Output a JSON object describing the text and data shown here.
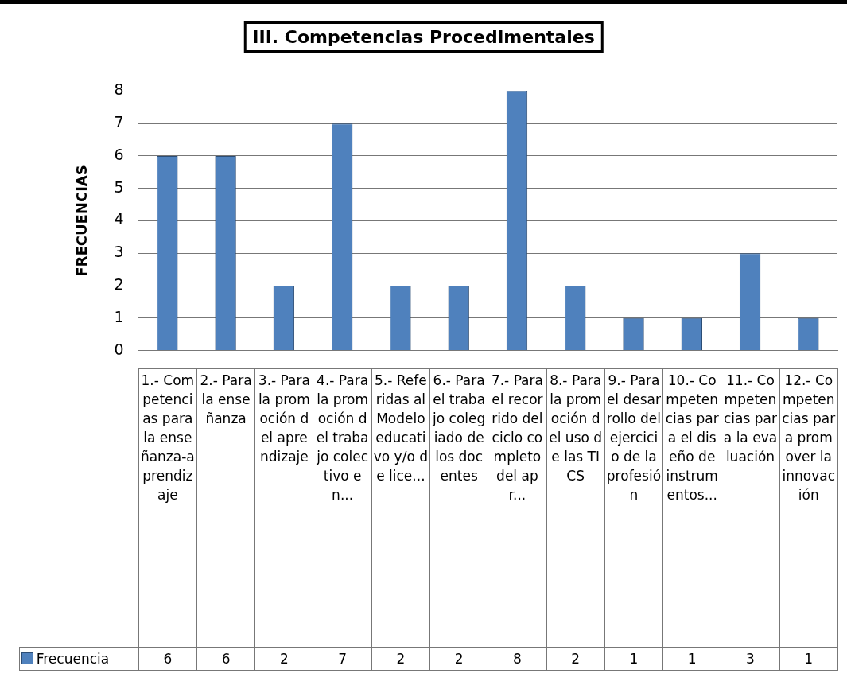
{
  "chart_data": {
    "type": "bar",
    "title": "III. Competencias Procedimentales",
    "ylabel": "FRECUENCIAS",
    "categories": [
      "1.- Competencias para la enseñanza-aprendizaje",
      "2.- Para la enseñanza",
      "3.- Para la promoción del aprendizaje",
      "4.- Para la promoción del trabajo colectivo en...",
      "5.- Referidas al Modelo educativo y/o de lice...",
      "6.- Para el trabajo colegiado de los docentes",
      "7.- Para el recorrido del ciclo completo del apr...",
      "8.- Para la promoción del uso de las TICS",
      "9.- Para el desarrollo del ejercicio de la profesión",
      "10.- Competencias para el diseño de instrumentos...",
      "11.- Competencias para la evaluación",
      "12.- Competencias para promover la innovación"
    ],
    "series": [
      {
        "name": "Frecuencia",
        "color": "#4f81bd",
        "values": [
          6,
          6,
          2,
          7,
          2,
          2,
          8,
          2,
          1,
          1,
          3,
          1
        ]
      }
    ],
    "ylim": [
      0,
      8
    ],
    "yticks": [
      0,
      1,
      2,
      3,
      4,
      5,
      6,
      7,
      8
    ],
    "grid": "y",
    "data_labels": true,
    "legend": "bottom"
  }
}
